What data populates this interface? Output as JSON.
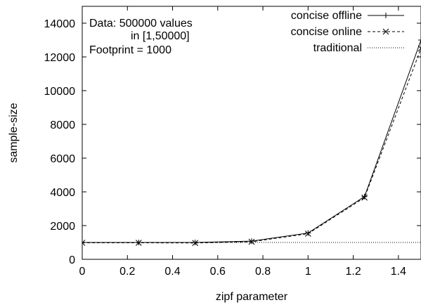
{
  "chart_data": {
    "type": "line",
    "title": "",
    "xlabel": "zipf parameter",
    "ylabel": "sample-size",
    "xlim": [
      0,
      1.5
    ],
    "ylim": [
      0,
      15000
    ],
    "x_ticks": [
      0,
      0.2,
      0.4,
      0.6,
      0.8,
      1,
      1.2,
      1.4
    ],
    "x_tick_labels": [
      "0",
      "0.2",
      "0.4",
      "0.6",
      "0.8",
      "1",
      "1.2",
      "1.4"
    ],
    "y_ticks": [
      0,
      2000,
      4000,
      6000,
      8000,
      10000,
      12000,
      14000
    ],
    "y_tick_labels": [
      "0",
      "2000",
      "4000",
      "6000",
      "8000",
      "10000",
      "12000",
      "14000"
    ],
    "grid": false,
    "legend_position": "top-right",
    "annotations": [
      "Data: 500000 values",
      "in [1,50000]",
      "Footprint = 1000"
    ],
    "x": [
      0,
      0.25,
      0.5,
      0.75,
      1.0,
      1.25,
      1.5
    ],
    "series": [
      {
        "name": "concise offline",
        "style": "solid",
        "marker": "plus",
        "color": "#000000",
        "values": [
          1000,
          1000,
          1000,
          1080,
          1560,
          3720,
          13000
        ]
      },
      {
        "name": "concise online",
        "style": "dashed",
        "marker": "x",
        "color": "#000000",
        "values": [
          980,
          980,
          970,
          1040,
          1520,
          3660,
          12500
        ]
      },
      {
        "name": "traditional",
        "style": "dotted",
        "marker": "none",
        "color": "#000000",
        "values": [
          1000,
          1000,
          1000,
          1000,
          1000,
          1000,
          1000
        ]
      }
    ]
  }
}
